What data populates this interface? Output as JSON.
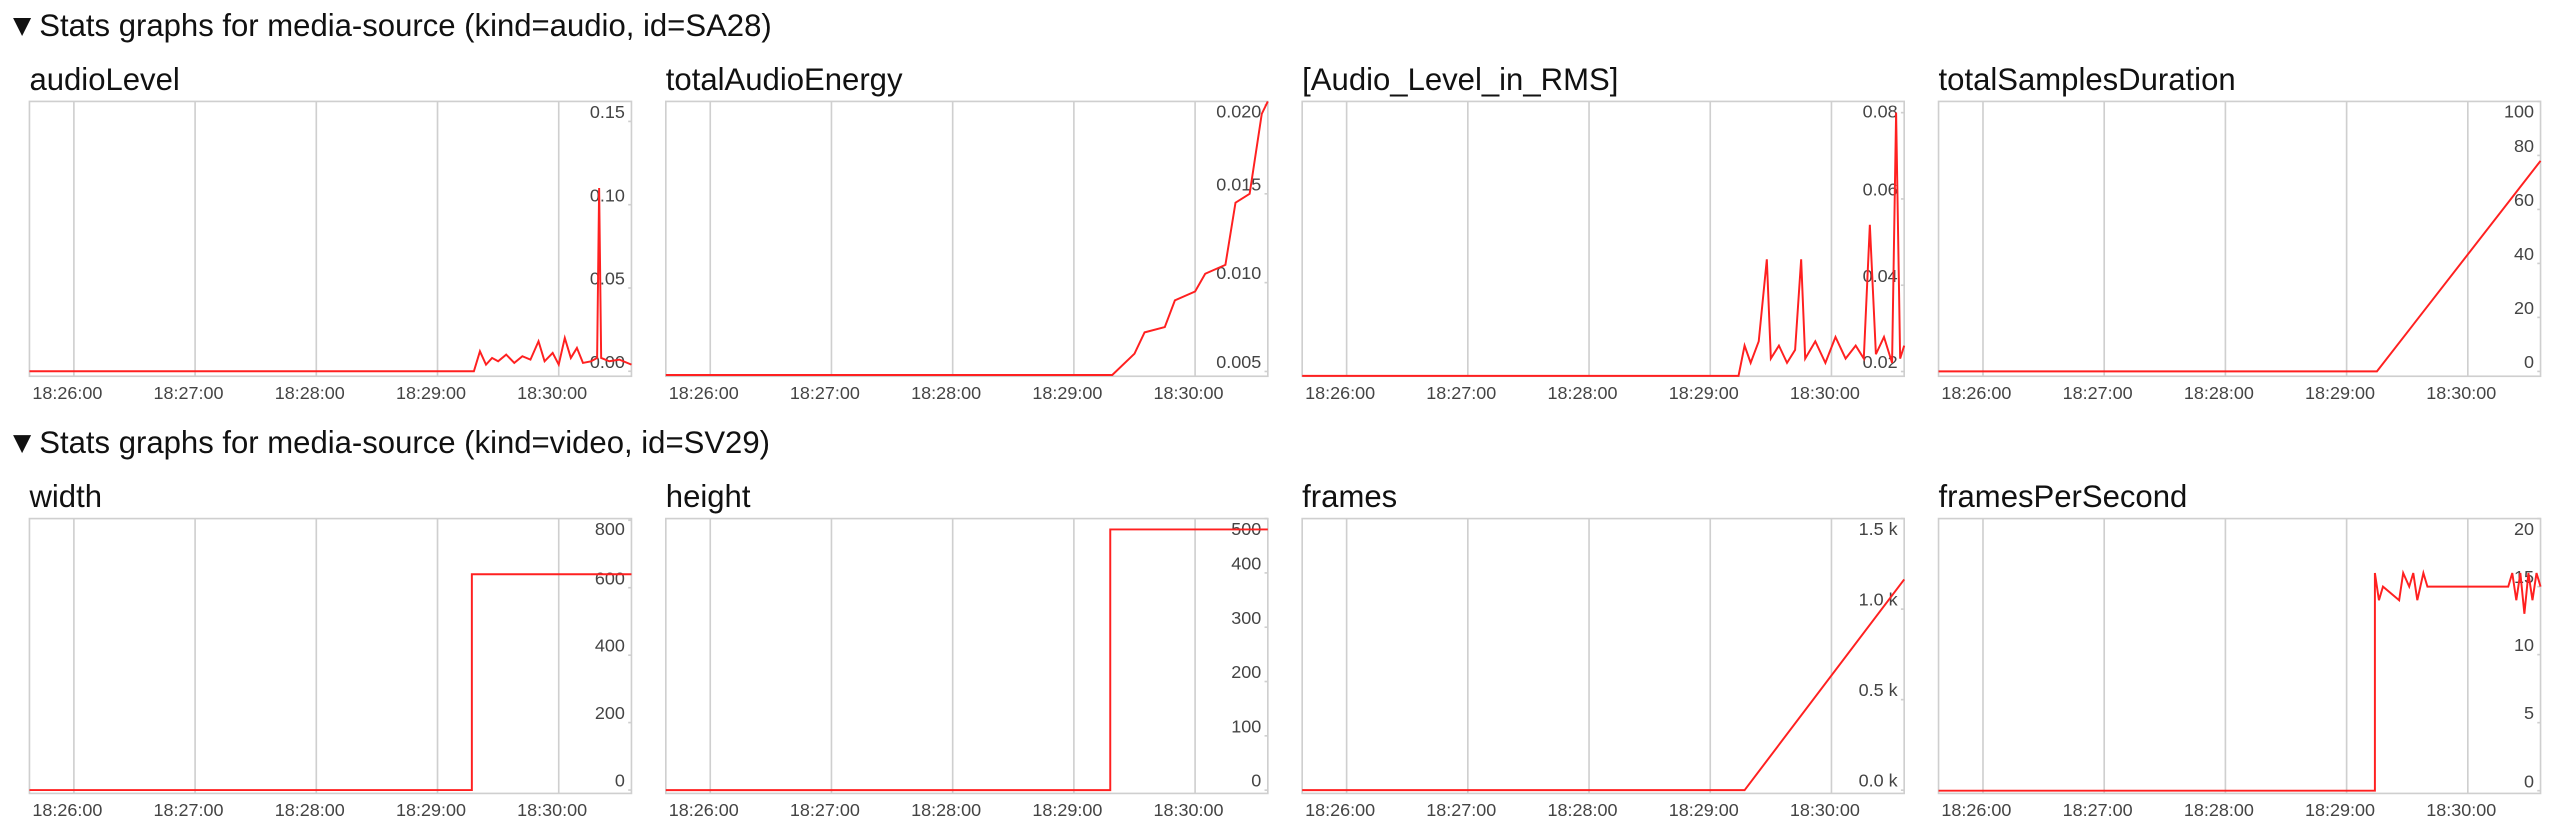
{
  "sections": [
    {
      "title": "Stats graphs for media-source (kind=audio, id=SA28)"
    },
    {
      "title": "Stats graphs for media-source (kind=video, id=SV29)"
    }
  ],
  "chart_data": [
    {
      "type": "line",
      "title": "audioLevel",
      "color": "#ff2020",
      "grid": true,
      "xlim": [
        "18:25:38",
        "18:30:36"
      ],
      "xticks": [
        "18:26:00",
        "18:27:00",
        "18:28:00",
        "18:29:00",
        "18:30:00"
      ],
      "ylim": [
        -0.003,
        0.162
      ],
      "yticks": [
        {
          "value": 0,
          "label": "0.00"
        },
        0.05,
        {
          "value": 0.1,
          "label": "0.10"
        },
        0.15
      ],
      "x": [
        "18:25:38",
        "18:29:18",
        "18:29:21",
        "18:29:24",
        "18:29:27",
        "18:29:30",
        "18:29:34",
        "18:29:38",
        "18:29:42",
        "18:29:46",
        "18:29:50",
        "18:29:53",
        "18:29:57",
        "18:30:00",
        "18:30:03",
        "18:30:06",
        "18:30:09",
        "18:30:12",
        "18:30:16",
        "18:30:19",
        "18:30:20",
        "18:30:21",
        "18:30:25",
        "18:30:30",
        "18:30:36"
      ],
      "values": [
        0,
        0,
        0.012,
        0.004,
        0.008,
        0.006,
        0.01,
        0.005,
        0.009,
        0.007,
        0.018,
        0.006,
        0.011,
        0.004,
        0.02,
        0.008,
        0.014,
        0.005,
        0.006,
        0.008,
        0.11,
        0.008,
        0.006,
        0.007,
        0.004
      ]
    },
    {
      "type": "line",
      "title": "totalAudioEnergy",
      "color": "#ff2020",
      "grid": true,
      "xlim": [
        "18:25:38",
        "18:30:36"
      ],
      "xticks": [
        "18:26:00",
        "18:27:00",
        "18:28:00",
        "18:29:00",
        "18:30:00"
      ],
      "ylim": [
        0.00473,
        0.0202
      ],
      "yticks": [
        0.005,
        {
          "value": 0.01,
          "label": "0.010"
        },
        0.015,
        {
          "value": 0.02,
          "label": "0.020"
        }
      ],
      "x": [
        "18:25:38",
        "18:29:19",
        "18:29:30",
        "18:29:35",
        "18:29:45",
        "18:29:50",
        "18:30:00",
        "18:30:05",
        "18:30:15",
        "18:30:20",
        "18:30:27",
        "18:30:33",
        "18:30:36"
      ],
      "values": [
        0.0048,
        0.0048,
        0.006,
        0.0072,
        0.0075,
        0.009,
        0.0095,
        0.0105,
        0.011,
        0.0145,
        0.015,
        0.0195,
        0.0202
      ]
    },
    {
      "type": "line",
      "title": "[Audio_Level_in_RMS]",
      "color": "#ff2020",
      "grid": true,
      "xlim": [
        "18:25:38",
        "18:30:36"
      ],
      "xticks": [
        "18:26:00",
        "18:27:00",
        "18:28:00",
        "18:29:00",
        "18:30:00"
      ],
      "ylim": [
        0.0189,
        0.0826
      ],
      "yticks": [
        0.02,
        0.04,
        0.06,
        0.08
      ],
      "x": [
        "18:25:38",
        "18:29:14",
        "18:29:17",
        "18:29:20",
        "18:29:24",
        "18:29:28",
        "18:29:30",
        "18:29:34",
        "18:29:38",
        "18:29:42",
        "18:29:45",
        "18:29:47",
        "18:29:52",
        "18:29:57",
        "18:30:02",
        "18:30:07",
        "18:30:12",
        "18:30:16",
        "18:30:19",
        "18:30:22",
        "18:30:26",
        "18:30:30",
        "18:30:32",
        "18:30:34",
        "18:30:36"
      ],
      "values": [
        0.019,
        0.019,
        0.026,
        0.022,
        0.027,
        0.046,
        0.023,
        0.026,
        0.022,
        0.025,
        0.046,
        0.023,
        0.027,
        0.022,
        0.028,
        0.023,
        0.026,
        0.023,
        0.054,
        0.024,
        0.028,
        0.022,
        0.08,
        0.023,
        0.026
      ]
    },
    {
      "type": "line",
      "title": "totalSamplesDuration",
      "color": "#ff2020",
      "grid": true,
      "xlim": [
        "18:25:38",
        "18:30:36"
      ],
      "xticks": [
        "18:26:00",
        "18:27:00",
        "18:28:00",
        "18:29:00",
        "18:30:00"
      ],
      "ylim": [
        -1.8,
        100
      ],
      "yticks": [
        0,
        20,
        40,
        60,
        80,
        100
      ],
      "x": [
        "18:25:38",
        "18:29:15",
        "18:30:36"
      ],
      "values": [
        0,
        0,
        78
      ]
    },
    {
      "type": "line",
      "title": "width",
      "color": "#ff2020",
      "grid": true,
      "xlim": [
        "18:25:38",
        "18:30:36"
      ],
      "xticks": [
        "18:26:00",
        "18:27:00",
        "18:28:00",
        "18:29:00",
        "18:30:00"
      ],
      "ylim": [
        -10,
        805
      ],
      "yticks": [
        0,
        200,
        400,
        600,
        800
      ],
      "x": [
        "18:25:38",
        "18:29:17",
        "18:29:17",
        "18:30:36"
      ],
      "values": [
        0,
        0,
        640,
        640
      ]
    },
    {
      "type": "line",
      "title": "height",
      "color": "#ff2020",
      "grid": true,
      "xlim": [
        "18:25:38",
        "18:30:36"
      ],
      "xticks": [
        "18:26:00",
        "18:27:00",
        "18:28:00",
        "18:29:00",
        "18:30:00"
      ],
      "ylim": [
        -6,
        500
      ],
      "yticks": [
        0,
        100,
        200,
        300,
        400,
        500
      ],
      "x": [
        "18:25:38",
        "18:29:18",
        "18:29:18",
        "18:30:36"
      ],
      "values": [
        0,
        0,
        480,
        480
      ]
    },
    {
      "type": "line",
      "title": "frames",
      "color": "#ff2020",
      "grid": true,
      "xlim": [
        "18:25:38",
        "18:30:36"
      ],
      "xticks": [
        "18:26:00",
        "18:27:00",
        "18:28:00",
        "18:29:00",
        "18:30:00"
      ],
      "ylim": [
        -18,
        1500
      ],
      "yticks": [
        {
          "value": 0,
          "label": "0.0 k"
        },
        {
          "value": 500,
          "label": "0.5 k"
        },
        {
          "value": 1000,
          "label": "1.0 k"
        },
        {
          "value": 1500,
          "label": "1.5 k"
        }
      ],
      "x": [
        "18:25:38",
        "18:29:17",
        "18:30:36"
      ],
      "values": [
        0,
        0,
        1164
      ]
    },
    {
      "type": "line",
      "title": "framesPerSecond",
      "color": "#ff2020",
      "grid": true,
      "xlim": [
        "18:25:38",
        "18:30:36"
      ],
      "xticks": [
        "18:26:00",
        "18:27:00",
        "18:28:00",
        "18:29:00",
        "18:30:00"
      ],
      "ylim": [
        -0.2,
        20
      ],
      "yticks": [
        0,
        5,
        10,
        15,
        20
      ],
      "x": [
        "18:25:38",
        "18:29:14",
        "18:29:14",
        "18:29:16",
        "18:29:18",
        "18:29:26",
        "18:29:28",
        "18:29:31",
        "18:29:33",
        "18:29:35",
        "18:29:38",
        "18:29:40",
        "18:30:20",
        "18:30:22",
        "18:30:24",
        "18:30:26",
        "18:30:28",
        "18:30:30",
        "18:30:32",
        "18:30:34",
        "18:30:36"
      ],
      "values": [
        0,
        0,
        16,
        14,
        15,
        14,
        16,
        15,
        16,
        14,
        16,
        15,
        15,
        16,
        14,
        16,
        13,
        16,
        14,
        16,
        15
      ]
    }
  ]
}
